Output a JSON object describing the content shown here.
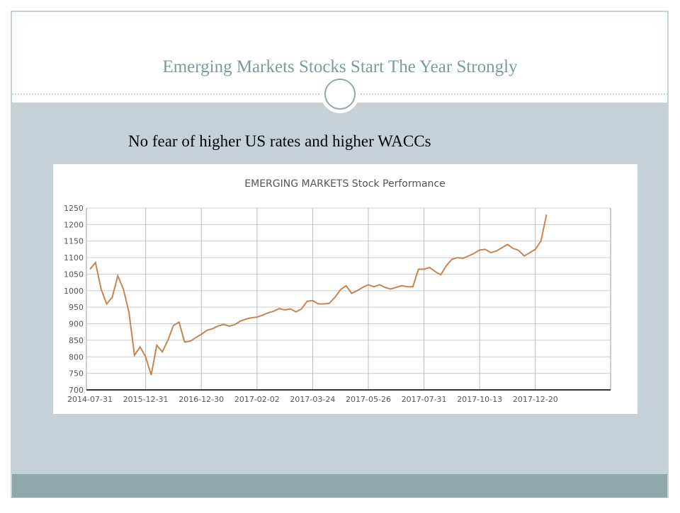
{
  "slide": {
    "title": "Emerging Markets Stocks  Start The Year Strongly",
    "subtitle": "No fear of higher US rates and higher WACCs"
  },
  "chart_data": {
    "type": "line",
    "title": "EMERGING MARKETS Stock Performance",
    "categories": [
      "2014-07-31",
      null,
      null,
      null,
      null,
      null,
      null,
      null,
      null,
      null,
      "2015-12-31",
      null,
      null,
      null,
      null,
      null,
      null,
      null,
      null,
      null,
      "2016-12-30",
      null,
      null,
      null,
      null,
      null,
      null,
      null,
      null,
      null,
      "2017-02-02",
      null,
      null,
      null,
      null,
      null,
      null,
      null,
      null,
      null,
      "2017-03-24",
      null,
      null,
      null,
      null,
      null,
      null,
      null,
      null,
      null,
      "2017-05-26",
      null,
      null,
      null,
      null,
      null,
      null,
      null,
      null,
      null,
      "2017-07-31",
      null,
      null,
      null,
      null,
      null,
      null,
      null,
      null,
      null,
      "2017-10-13",
      null,
      null,
      null,
      null,
      null,
      null,
      null,
      null,
      null,
      "2017-12-20",
      null,
      null
    ],
    "values": [
      1065,
      1085,
      1005,
      960,
      980,
      1045,
      1005,
      935,
      805,
      830,
      800,
      745,
      835,
      815,
      850,
      895,
      905,
      845,
      847,
      858,
      868,
      880,
      885,
      893,
      898,
      893,
      897,
      908,
      914,
      918,
      920,
      926,
      933,
      938,
      946,
      942,
      945,
      936,
      945,
      968,
      970,
      960,
      960,
      962,
      980,
      1003,
      1015,
      992,
      1000,
      1010,
      1018,
      1012,
      1018,
      1010,
      1005,
      1010,
      1015,
      1012,
      1012,
      1065,
      1065,
      1070,
      1058,
      1048,
      1075,
      1095,
      1100,
      1098,
      1105,
      1113,
      1123,
      1125,
      1115,
      1120,
      1130,
      1140,
      1128,
      1122,
      1105,
      1115,
      1125,
      1150,
      1230
    ],
    "color": "#c8844e",
    "ylim": [
      700,
      1250
    ],
    "yticks": [
      700,
      750,
      800,
      850,
      900,
      950,
      1000,
      1050,
      1100,
      1150,
      1200,
      1250
    ],
    "grid": true
  }
}
